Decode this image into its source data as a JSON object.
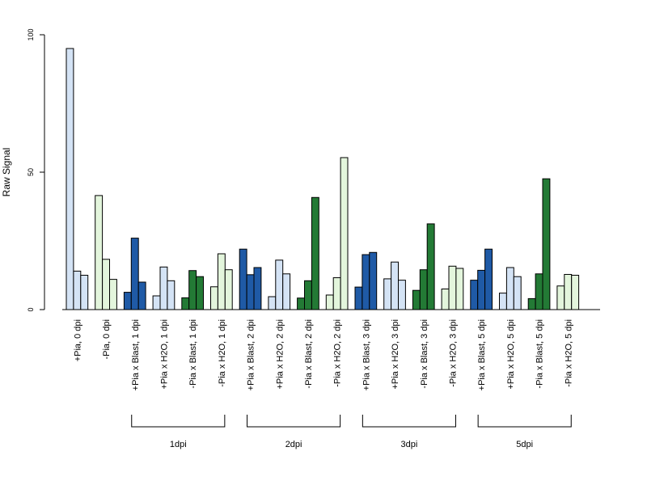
{
  "chart_data": {
    "type": "bar",
    "ylabel": "Raw Signal",
    "ylim": [
      0,
      100
    ],
    "yticks": [
      0,
      50,
      100
    ],
    "categories": [
      "+Pia, 0 dpi",
      "-Pia, 0 dpi",
      "+Pia x Blast, 1 dpi",
      "+Pia x H2O, 1 dpi",
      "-Pia x Blast, 1 dpi",
      "-Pia x H2O, 1 dpi",
      "+Pia x Blast, 2 dpi",
      "+Pia x H2O, 2 dpi",
      "-Pia x Blast, 2 dpi",
      "-Pia x H2O, 2 dpi",
      "+Pia x Blast, 3 dpi",
      "+Pia x H2O, 3 dpi",
      "-Pia x Blast, 3 dpi",
      "-Pia x H2O, 3 dpi",
      "+Pia x Blast, 5 dpi",
      "+Pia x H2O, 5 dpi",
      "-Pia x Blast, 5 dpi",
      "-Pia x H2O, 5 dpi"
    ],
    "colors": [
      "#d4e3f5",
      "#e3f5dc",
      "#1f5aa6",
      "#d4e3f5",
      "#237a35",
      "#e3f5dc",
      "#1f5aa6",
      "#d4e3f5",
      "#237a35",
      "#e3f5dc",
      "#1f5aa6",
      "#d4e3f5",
      "#237a35",
      "#e3f5dc",
      "#1f5aa6",
      "#d4e3f5",
      "#237a35",
      "#e3f5dc"
    ],
    "values": [
      [
        95,
        14,
        12.5
      ],
      [
        41.5,
        18.3,
        11
      ],
      [
        6.3,
        26,
        10
      ],
      [
        5,
        15.5,
        10.5
      ],
      [
        4.3,
        14.2,
        12
      ],
      [
        8.3,
        20.3,
        14.5
      ],
      [
        22,
        12.7,
        15.3
      ],
      [
        4.7,
        18,
        13
      ],
      [
        4.2,
        10.5,
        40.8
      ],
      [
        5.3,
        11.6,
        55.3
      ],
      [
        8.2,
        20,
        20.8
      ],
      [
        11.2,
        17.3,
        10.7
      ],
      [
        7,
        14.5,
        31.2
      ],
      [
        7.5,
        15.8,
        15
      ],
      [
        10.7,
        14.3,
        22
      ],
      [
        6,
        15.3,
        12
      ],
      [
        4,
        13,
        47.6
      ],
      [
        8.6,
        12.8,
        12.5
      ]
    ],
    "groups": [
      {
        "label": "1dpi",
        "start": 2,
        "end": 5
      },
      {
        "label": "2dpi",
        "start": 6,
        "end": 9
      },
      {
        "label": "3dpi",
        "start": 10,
        "end": 13
      },
      {
        "label": "5dpi",
        "start": 14,
        "end": 17
      }
    ]
  }
}
